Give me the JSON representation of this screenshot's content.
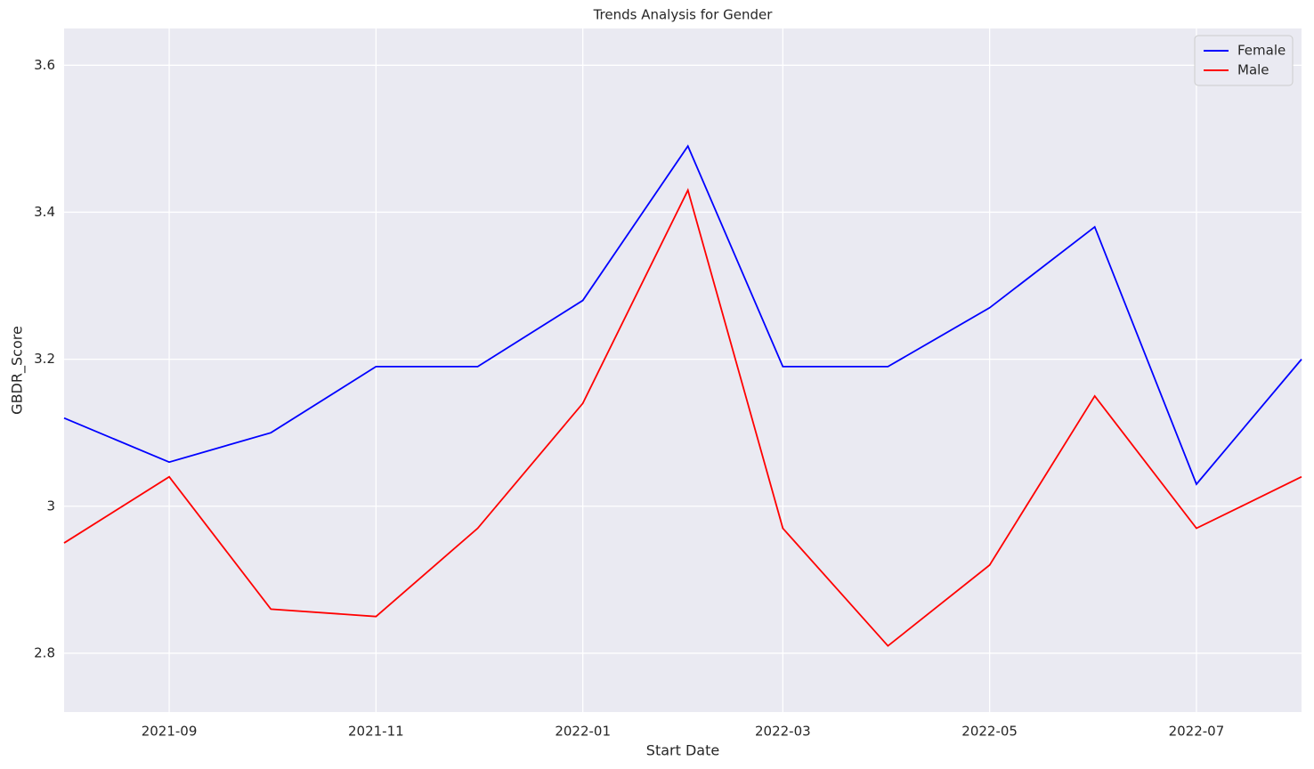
{
  "chart_data": {
    "type": "line",
    "title": "Trends Analysis for Gender",
    "xlabel": "Start Date",
    "ylabel": "GBDR_Score",
    "x": [
      "2021-08",
      "2021-09",
      "2021-10",
      "2021-11",
      "2021-12",
      "2022-01",
      "2022-02",
      "2022-03",
      "2022-04",
      "2022-05",
      "2022-06",
      "2022-07",
      "2022-08"
    ],
    "series": [
      {
        "name": "Female",
        "color": "#0000ff",
        "values": [
          3.12,
          3.06,
          3.1,
          3.19,
          3.19,
          3.28,
          3.49,
          3.19,
          3.19,
          3.27,
          3.38,
          3.03,
          3.2
        ]
      },
      {
        "name": "Male",
        "color": "#ff0000",
        "values": [
          2.95,
          3.04,
          2.86,
          2.85,
          2.97,
          3.14,
          3.43,
          2.97,
          2.81,
          2.92,
          3.15,
          2.97,
          3.04
        ]
      }
    ],
    "xlim": [
      "2021-08",
      "2022-08"
    ],
    "xticks": [
      "2021-09",
      "2021-11",
      "2022-01",
      "2022-03",
      "2022-05",
      "2022-07"
    ],
    "ylim": [
      2.72,
      3.65
    ],
    "yticks": [
      2.8,
      3.0,
      3.2,
      3.4,
      3.6
    ],
    "grid": true,
    "legend": "upper right"
  }
}
